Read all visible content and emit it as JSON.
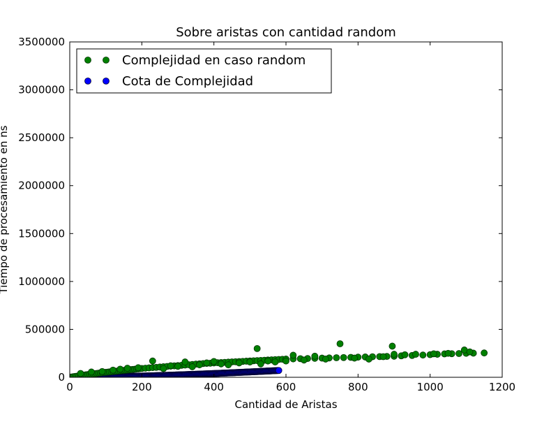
{
  "chart_data": {
    "type": "scatter",
    "title": "Sobre aristas con cantidad random",
    "xlabel": "Cantidad de Aristas",
    "ylabel": "Tiempo de procesamiento en ns",
    "xlim": [
      0,
      1200
    ],
    "ylim": [
      0,
      3500000
    ],
    "xticks": [
      0,
      200,
      400,
      600,
      800,
      1000,
      1200
    ],
    "yticks": [
      0,
      500000,
      1000000,
      1500000,
      2000000,
      2500000,
      3000000,
      3500000
    ],
    "xtick_labels": [
      "0",
      "200",
      "400",
      "600",
      "800",
      "1000",
      "1200"
    ],
    "ytick_labels": [
      "0",
      "500000",
      "1000000",
      "1500000",
      "2000000",
      "2500000",
      "3000000",
      "3500000"
    ],
    "grid": false,
    "legend_position": "top-left",
    "series": [
      {
        "name": "Complejidad en caso random",
        "color": "#008000",
        "edge_color": "#003300",
        "marker": "circle",
        "points": [
          [
            5,
            3000
          ],
          [
            10,
            6000
          ],
          [
            15,
            9000
          ],
          [
            20,
            12000
          ],
          [
            25,
            15000
          ],
          [
            30,
            18000
          ],
          [
            35,
            20000
          ],
          [
            40,
            23000
          ],
          [
            45,
            26000
          ],
          [
            50,
            28000
          ],
          [
            55,
            31000
          ],
          [
            60,
            33000
          ],
          [
            65,
            35000
          ],
          [
            70,
            38000
          ],
          [
            75,
            40000
          ],
          [
            80,
            43000
          ],
          [
            85,
            45000
          ],
          [
            90,
            47000
          ],
          [
            95,
            50000
          ],
          [
            100,
            52000
          ],
          [
            105,
            54000
          ],
          [
            110,
            56000
          ],
          [
            115,
            58000
          ],
          [
            120,
            60000
          ],
          [
            125,
            62000
          ],
          [
            130,
            64000
          ],
          [
            135,
            66000
          ],
          [
            140,
            68000
          ],
          [
            145,
            70000
          ],
          [
            150,
            72000
          ],
          [
            155,
            74000
          ],
          [
            160,
            76000
          ],
          [
            165,
            78000
          ],
          [
            170,
            80000
          ],
          [
            175,
            82000
          ],
          [
            180,
            84000
          ],
          [
            185,
            86000
          ],
          [
            190,
            88000
          ],
          [
            195,
            90000
          ],
          [
            200,
            92000
          ],
          [
            210,
            95000
          ],
          [
            220,
            98000
          ],
          [
            230,
            101000
          ],
          [
            240,
            104000
          ],
          [
            250,
            107000
          ],
          [
            260,
            110000
          ],
          [
            270,
            113000
          ],
          [
            280,
            116000
          ],
          [
            290,
            119000
          ],
          [
            300,
            122000
          ],
          [
            310,
            125000
          ],
          [
            320,
            128000
          ],
          [
            330,
            131000
          ],
          [
            340,
            134000
          ],
          [
            350,
            137000
          ],
          [
            360,
            140000
          ],
          [
            370,
            143000
          ],
          [
            380,
            145000
          ],
          [
            390,
            147000
          ],
          [
            400,
            150000
          ],
          [
            410,
            152000
          ],
          [
            420,
            154000
          ],
          [
            430,
            156000
          ],
          [
            440,
            158000
          ],
          [
            450,
            160000
          ],
          [
            460,
            162000
          ],
          [
            470,
            164000
          ],
          [
            480,
            166000
          ],
          [
            490,
            168000
          ],
          [
            500,
            170000
          ],
          [
            510,
            172000
          ],
          [
            520,
            174000
          ],
          [
            530,
            176000
          ],
          [
            540,
            178000
          ],
          [
            550,
            180000
          ],
          [
            560,
            182000
          ],
          [
            570,
            184000
          ],
          [
            580,
            186000
          ],
          [
            590,
            188000
          ],
          [
            600,
            190000
          ],
          [
            620,
            192000
          ],
          [
            640,
            194000
          ],
          [
            660,
            196000
          ],
          [
            680,
            198000
          ],
          [
            700,
            200000
          ],
          [
            720,
            202000
          ],
          [
            740,
            204000
          ],
          [
            760,
            206000
          ],
          [
            780,
            208000
          ],
          [
            800,
            210000
          ],
          [
            820,
            212000
          ],
          [
            840,
            214000
          ],
          [
            860,
            216000
          ],
          [
            880,
            218000
          ],
          [
            900,
            220000
          ],
          [
            920,
            224000
          ],
          [
            950,
            228000
          ],
          [
            980,
            232000
          ],
          [
            1000,
            236000
          ],
          [
            1020,
            240000
          ],
          [
            1040,
            244000
          ],
          [
            1060,
            246000
          ],
          [
            1080,
            248000
          ],
          [
            1100,
            250000
          ],
          [
            1120,
            252000
          ],
          [
            1150,
            254000
          ],
          [
            30,
            40000
          ],
          [
            60,
            55000
          ],
          [
            90,
            60000
          ],
          [
            120,
            75000
          ],
          [
            140,
            85000
          ],
          [
            160,
            95000
          ],
          [
            190,
            100000
          ],
          [
            230,
            170000
          ],
          [
            260,
            90000
          ],
          [
            280,
            120000
          ],
          [
            300,
            115000
          ],
          [
            320,
            160000
          ],
          [
            340,
            110000
          ],
          [
            360,
            130000
          ],
          [
            380,
            150000
          ],
          [
            400,
            165000
          ],
          [
            420,
            140000
          ],
          [
            440,
            130000
          ],
          [
            470,
            150000
          ],
          [
            500,
            160000
          ],
          [
            520,
            300000
          ],
          [
            530,
            140000
          ],
          [
            550,
            170000
          ],
          [
            570,
            160000
          ],
          [
            600,
            170000
          ],
          [
            620,
            230000
          ],
          [
            650,
            180000
          ],
          [
            680,
            220000
          ],
          [
            710,
            190000
          ],
          [
            750,
            350000
          ],
          [
            790,
            200000
          ],
          [
            830,
            190000
          ],
          [
            870,
            215000
          ],
          [
            895,
            325000
          ],
          [
            900,
            240000
          ],
          [
            930,
            235000
          ],
          [
            960,
            240000
          ],
          [
            1010,
            245000
          ],
          [
            1050,
            250000
          ],
          [
            1095,
            285000
          ],
          [
            1110,
            265000
          ]
        ]
      },
      {
        "name": "Cota de Complejidad",
        "color": "#0000ff",
        "edge_color": "#000033",
        "marker": "circle",
        "formula": "y = 2.7 * x^1.6",
        "x_range": [
          0,
          580
        ],
        "x_step": 2
      }
    ]
  }
}
